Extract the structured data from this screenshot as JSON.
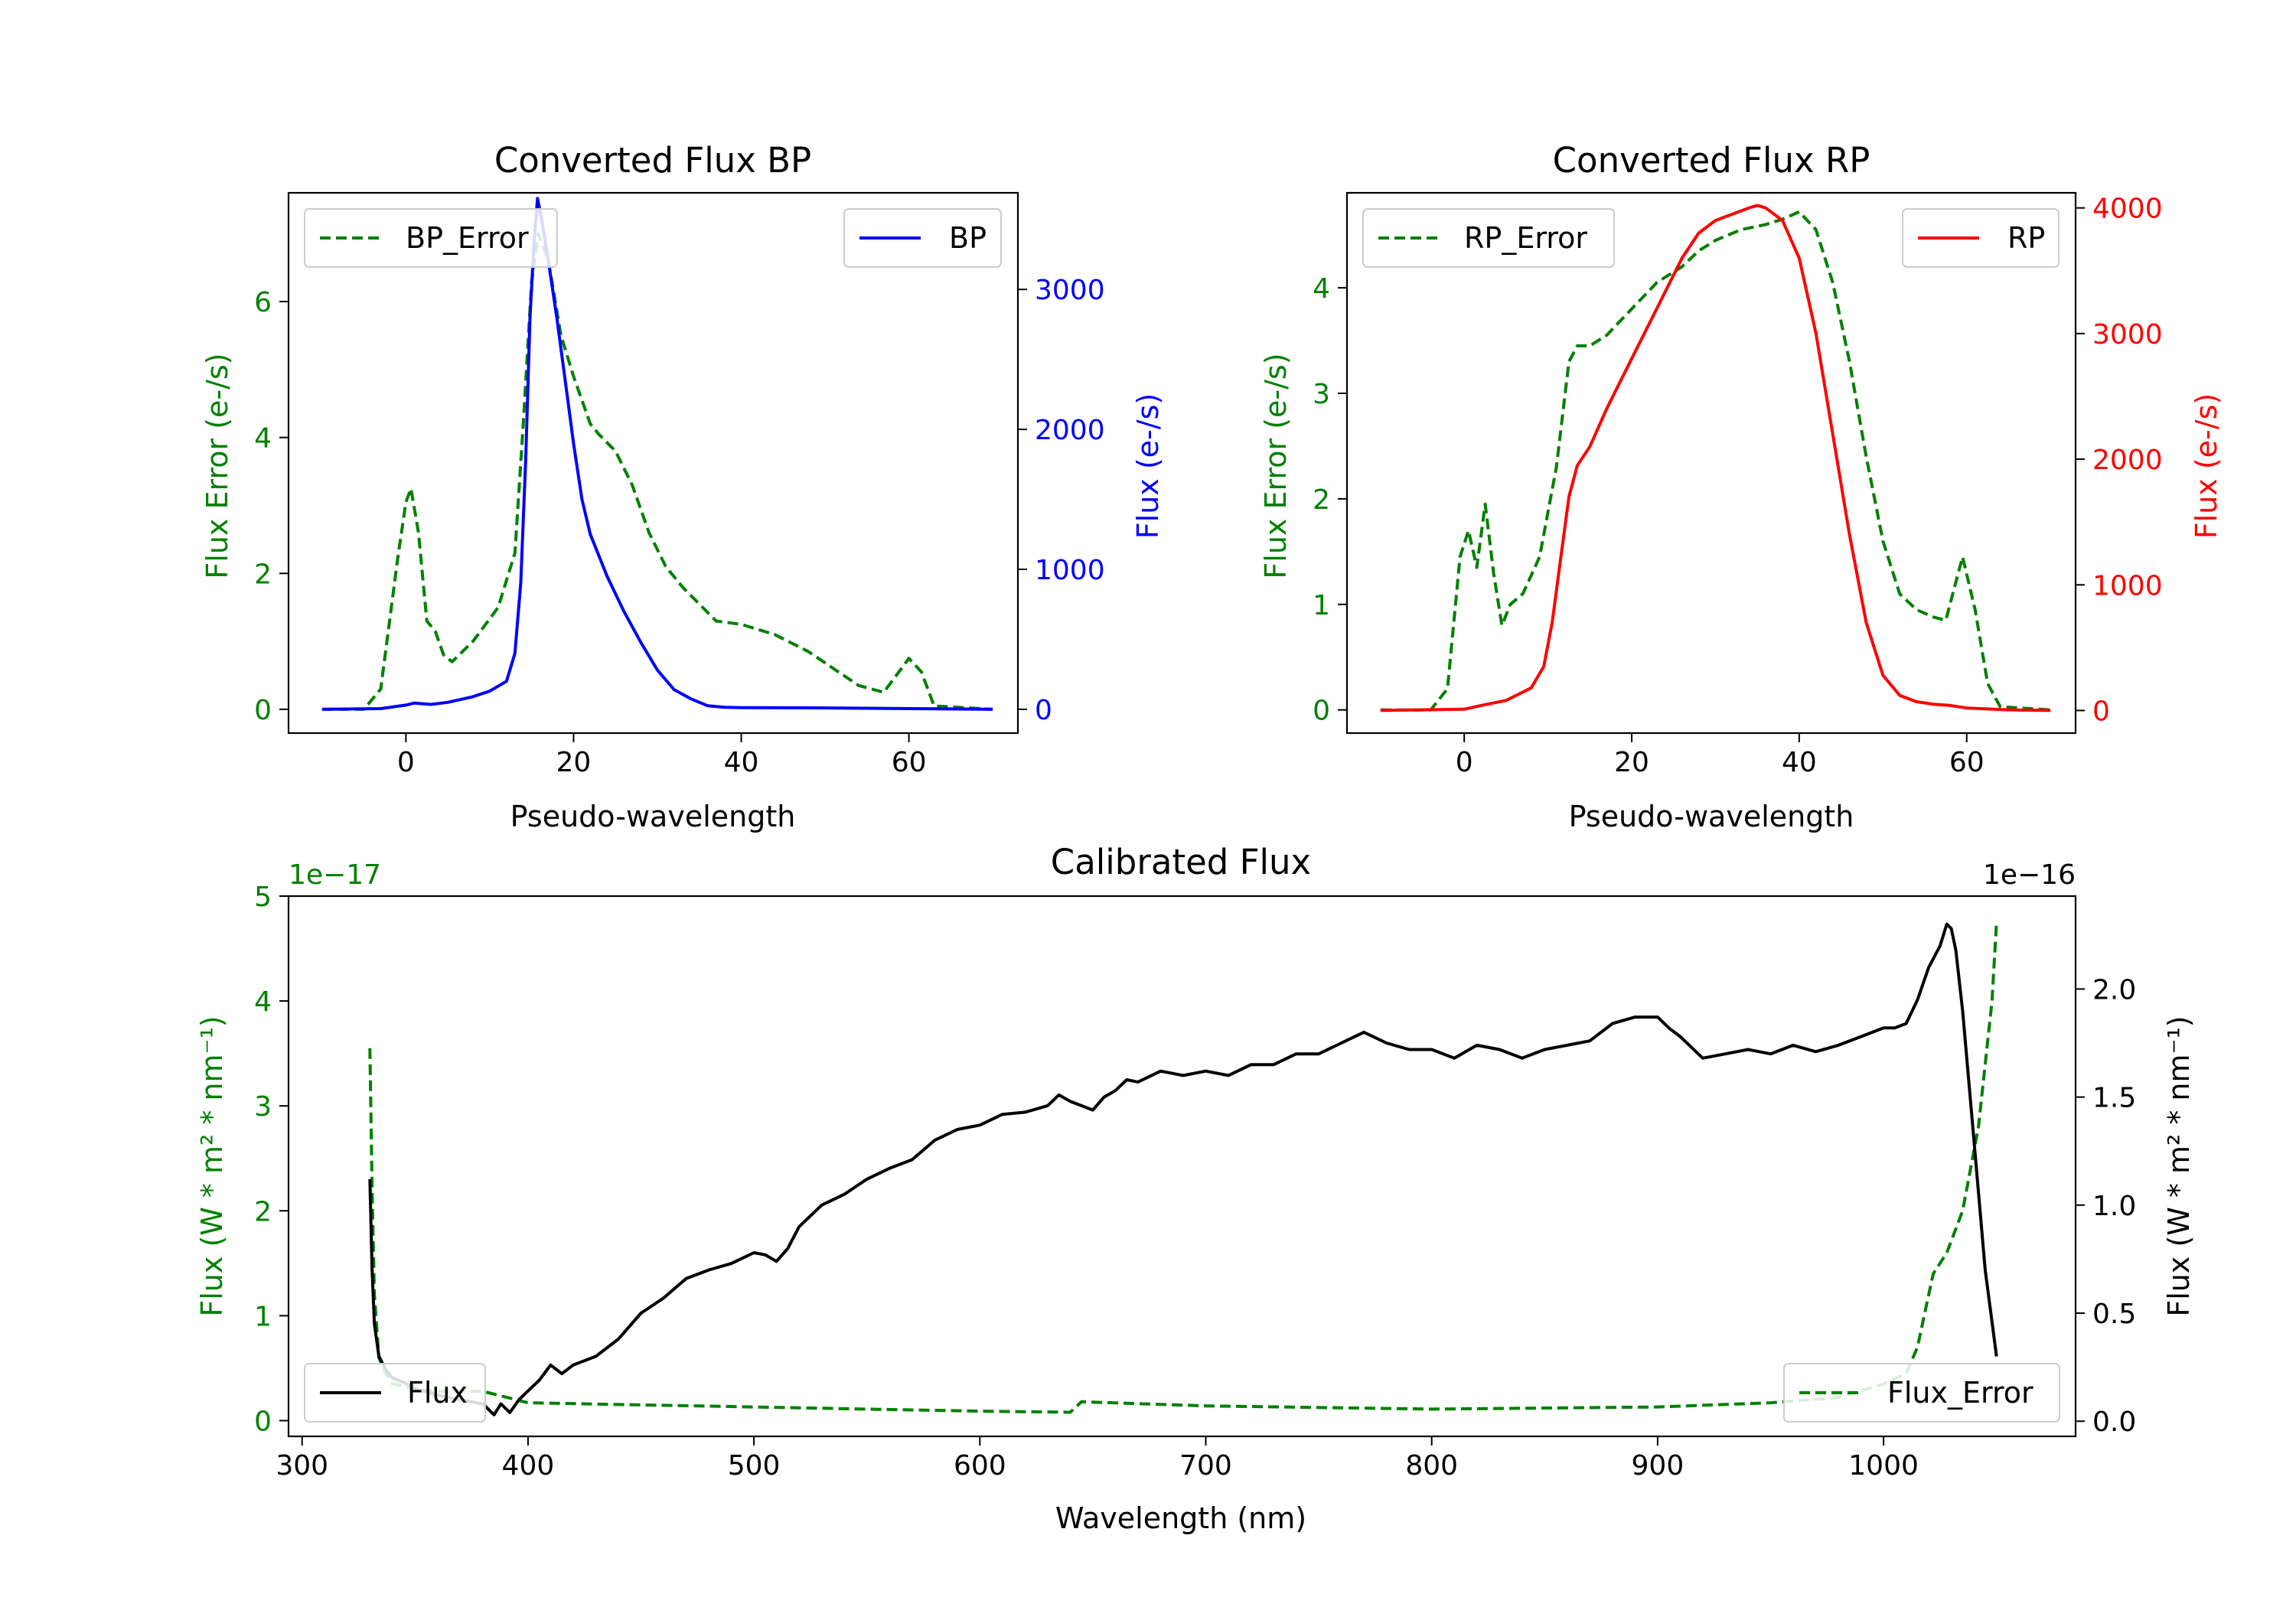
{
  "colors": {
    "green": "#008000",
    "blue": "#0000ff",
    "red": "#ff0000",
    "black": "#000000"
  },
  "chart_data": [
    {
      "type": "line",
      "title": "Converted Flux BP",
      "xlabel": "Pseudo-wavelength",
      "xlim": [
        -14,
        73
      ],
      "x_ticks": [
        0,
        20,
        40,
        60
      ],
      "left_axis": {
        "label": "Flux Error (e-/s)",
        "color": "#008000",
        "ylim": [
          -0.35,
          7.6
        ],
        "ticks": [
          0,
          2,
          4,
          6
        ]
      },
      "right_axis": {
        "label": "Flux (e-/s)",
        "color": "#0000ff",
        "ylim": [
          -170,
          3690
        ],
        "ticks": [
          0,
          1000,
          2000,
          3000
        ]
      },
      "series": [
        {
          "name": "BP_Error",
          "axis": "left",
          "color": "#008000",
          "style": "dashed",
          "x": [
            -10,
            -5,
            -3,
            -1,
            0,
            0.6,
            1.5,
            2.5,
            3.5,
            4.5,
            5.5,
            8,
            11,
            13,
            14,
            15,
            15.8,
            17,
            18.5,
            20,
            22,
            23,
            25,
            27,
            29,
            31,
            33,
            35,
            37,
            40,
            44,
            48,
            51,
            54,
            57,
            58.5,
            60,
            61.5,
            63,
            70
          ],
          "values": [
            0,
            0,
            0.3,
            2.2,
            3.05,
            3.25,
            2.6,
            1.3,
            1.15,
            0.8,
            0.7,
            1.0,
            1.5,
            2.3,
            4.2,
            6.3,
            7.0,
            6.6,
            5.5,
            4.9,
            4.2,
            4.05,
            3.8,
            3.3,
            2.6,
            2.1,
            1.8,
            1.55,
            1.3,
            1.25,
            1.1,
            0.85,
            0.6,
            0.35,
            0.25,
            0.5,
            0.75,
            0.55,
            0.05,
            0
          ]
        },
        {
          "name": "BP",
          "axis": "right",
          "color": "#0000ff",
          "style": "solid",
          "x": [
            -10,
            -3,
            0,
            1,
            2,
            3,
            5,
            8,
            10,
            12,
            13,
            13.7,
            14.3,
            14.8,
            15.3,
            15.7,
            16.2,
            17,
            18,
            19,
            20,
            21,
            22,
            24,
            26,
            28,
            30,
            32,
            34,
            36,
            38,
            40,
            50,
            60,
            70
          ],
          "values": [
            0,
            5,
            30,
            45,
            40,
            35,
            50,
            90,
            130,
            200,
            400,
            900,
            1800,
            2800,
            3350,
            3650,
            3500,
            3200,
            2800,
            2350,
            1900,
            1500,
            1250,
            950,
            700,
            480,
            280,
            140,
            75,
            25,
            15,
            12,
            10,
            5,
            0
          ]
        }
      ]
    },
    {
      "type": "line",
      "title": "Converted Flux RP",
      "xlabel": "Pseudo-wavelength",
      "xlim": [
        -14,
        73
      ],
      "x_ticks": [
        0,
        20,
        40,
        60
      ],
      "left_axis": {
        "label": "Flux Error (e-/s)",
        "color": "#008000",
        "ylim": [
          -0.22,
          4.9
        ],
        "ticks": [
          0,
          1,
          2,
          3,
          4
        ]
      },
      "right_axis": {
        "label": "Flux (e-/s)",
        "color": "#ff0000",
        "ylim": [
          -180,
          4120
        ],
        "ticks": [
          0,
          1000,
          2000,
          3000,
          4000
        ]
      },
      "series": [
        {
          "name": "RP_Error",
          "axis": "left",
          "color": "#008000",
          "style": "dashed",
          "x": [
            -10,
            -4,
            -2,
            -0.5,
            0.5,
            1.5,
            2.5,
            3.5,
            4.5,
            5.5,
            7,
            9,
            11,
            12.5,
            13.5,
            15,
            17,
            20,
            23,
            26,
            28,
            30,
            33,
            36,
            38,
            40,
            42,
            44,
            46,
            48,
            50,
            52,
            54,
            56,
            57.5,
            59.5,
            61,
            62.5,
            64,
            70
          ],
          "values": [
            0,
            0,
            0.2,
            1.45,
            1.7,
            1.35,
            1.95,
            1.3,
            0.8,
            1.0,
            1.1,
            1.45,
            2.3,
            3.3,
            3.45,
            3.45,
            3.55,
            3.8,
            4.05,
            4.2,
            4.35,
            4.45,
            4.55,
            4.6,
            4.65,
            4.72,
            4.55,
            4.05,
            3.3,
            2.4,
            1.6,
            1.1,
            0.95,
            0.88,
            0.85,
            1.45,
            0.95,
            0.25,
            0.03,
            0
          ]
        },
        {
          "name": "RP",
          "axis": "right",
          "color": "#ff0000",
          "style": "solid",
          "x": [
            -10,
            0,
            2,
            5,
            8,
            9.5,
            10.5,
            11.5,
            12.5,
            13.5,
            15,
            17,
            20,
            23,
            26,
            28,
            30,
            32,
            34,
            35,
            36,
            38,
            40,
            42,
            44,
            46,
            48,
            50,
            52,
            54,
            56,
            58,
            60,
            65,
            70
          ],
          "values": [
            0,
            10,
            40,
            80,
            180,
            350,
            700,
            1200,
            1700,
            1950,
            2100,
            2400,
            2800,
            3200,
            3600,
            3800,
            3900,
            3950,
            4000,
            4020,
            4000,
            3900,
            3600,
            3000,
            2200,
            1400,
            700,
            280,
            120,
            70,
            50,
            40,
            20,
            5,
            0
          ]
        }
      ]
    },
    {
      "type": "line",
      "title": "Calibrated Flux",
      "xlabel": "Wavelength (nm)",
      "xlim": [
        294,
        1085
      ],
      "x_ticks": [
        300,
        400,
        500,
        600,
        700,
        800,
        900,
        1000
      ],
      "left_axis": {
        "label": "Flux (W * m² * nm⁻¹)",
        "color": "#008000",
        "ylim": [
          -0.15,
          5.0
        ],
        "ticks": [
          0,
          1,
          2,
          3,
          4,
          5
        ],
        "offset_text": "1e−17"
      },
      "right_axis": {
        "label": "Flux (W * m² * nm⁻¹)",
        "color": "#000000",
        "ylim": [
          -0.07,
          2.43
        ],
        "ticks": [
          0.0,
          0.5,
          1.0,
          1.5,
          2.0
        ],
        "tick_labels": [
          "0.0",
          "0.5",
          "1.0",
          "1.5",
          "2.0"
        ],
        "offset_text": "1e−16"
      },
      "series": [
        {
          "name": "Flux_Error",
          "axis": "left",
          "color": "#008000",
          "style": "dashed",
          "x": [
            330,
            331,
            332,
            334,
            337,
            340,
            345,
            350,
            360,
            380,
            400,
            450,
            500,
            550,
            600,
            640,
            642,
            645,
            700,
            800,
            900,
            950,
            980,
            1000,
            1010,
            1015,
            1018,
            1022,
            1028,
            1035,
            1042,
            1048,
            1050
          ],
          "values": [
            3.55,
            2.2,
            1.2,
            0.6,
            0.45,
            0.35,
            0.33,
            0.3,
            0.28,
            0.28,
            0.17,
            0.15,
            0.13,
            0.11,
            0.09,
            0.08,
            0.12,
            0.18,
            0.14,
            0.11,
            0.13,
            0.17,
            0.22,
            0.35,
            0.45,
            0.7,
            1.0,
            1.4,
            1.6,
            2.0,
            2.8,
            4.0,
            4.75
          ]
        },
        {
          "name": "Flux",
          "axis": "right",
          "color": "#000000",
          "style": "solid",
          "x": [
            330,
            331,
            332,
            334,
            337,
            340,
            345,
            350,
            360,
            370,
            380,
            385,
            388,
            392,
            396,
            400,
            405,
            410,
            415,
            420,
            430,
            440,
            450,
            460,
            470,
            480,
            490,
            500,
            505,
            510,
            515,
            520,
            530,
            540,
            550,
            560,
            570,
            580,
            590,
            600,
            610,
            620,
            630,
            635,
            640,
            645,
            650,
            655,
            660,
            665,
            670,
            680,
            690,
            700,
            710,
            720,
            730,
            740,
            750,
            760,
            770,
            780,
            790,
            800,
            810,
            820,
            830,
            840,
            850,
            860,
            870,
            880,
            890,
            900,
            905,
            910,
            920,
            930,
            940,
            950,
            960,
            970,
            980,
            990,
            1000,
            1005,
            1010,
            1015,
            1020,
            1025,
            1028,
            1030,
            1032,
            1035,
            1040,
            1045,
            1050
          ],
          "values": [
            1.12,
            0.7,
            0.45,
            0.3,
            0.24,
            0.2,
            0.18,
            0.15,
            0.12,
            0.1,
            0.08,
            0.03,
            0.08,
            0.04,
            0.1,
            0.14,
            0.19,
            0.26,
            0.22,
            0.26,
            0.3,
            0.38,
            0.5,
            0.57,
            0.66,
            0.7,
            0.73,
            0.78,
            0.77,
            0.74,
            0.8,
            0.9,
            1.0,
            1.05,
            1.12,
            1.17,
            1.21,
            1.3,
            1.35,
            1.37,
            1.42,
            1.43,
            1.46,
            1.51,
            1.48,
            1.46,
            1.44,
            1.5,
            1.53,
            1.58,
            1.57,
            1.62,
            1.6,
            1.62,
            1.6,
            1.65,
            1.65,
            1.7,
            1.7,
            1.75,
            1.8,
            1.75,
            1.72,
            1.72,
            1.68,
            1.74,
            1.72,
            1.68,
            1.72,
            1.74,
            1.76,
            1.84,
            1.87,
            1.87,
            1.82,
            1.78,
            1.68,
            1.7,
            1.72,
            1.7,
            1.74,
            1.71,
            1.74,
            1.78,
            1.82,
            1.82,
            1.84,
            1.95,
            2.1,
            2.2,
            2.3,
            2.28,
            2.18,
            1.9,
            1.3,
            0.7,
            0.3
          ]
        }
      ]
    }
  ]
}
